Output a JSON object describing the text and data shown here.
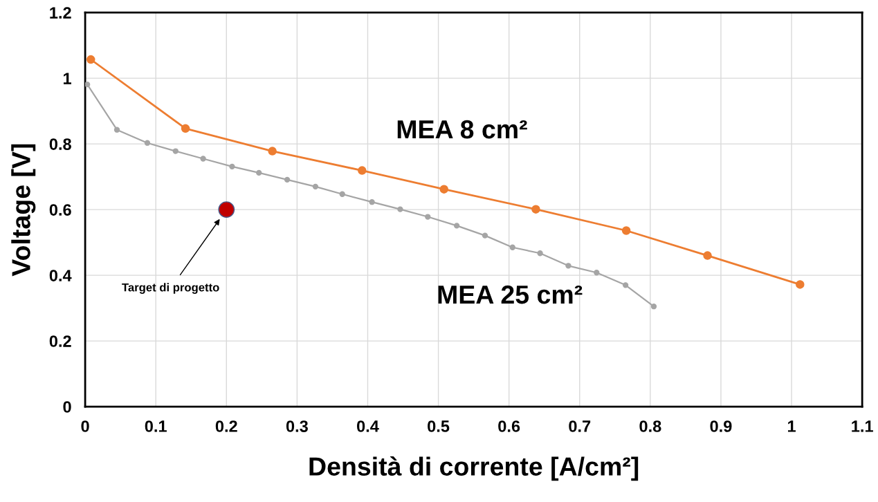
{
  "chart_data": {
    "type": "line",
    "xlabel": "Densità di corrente [A/cm²]",
    "ylabel": "Voltage [V]",
    "xlim": [
      0,
      1.1
    ],
    "xticks": [
      0,
      0.1,
      0.2,
      0.3,
      0.4,
      0.5,
      0.6,
      0.7,
      0.8,
      0.9,
      1,
      1.1
    ],
    "ylim": [
      0,
      1.2
    ],
    "yticks": [
      0,
      0.2,
      0.4,
      0.6,
      0.8,
      1,
      1.2
    ],
    "grid": true,
    "legend": false,
    "marker": "circle",
    "line_style": "solid",
    "series": [
      {
        "name": "MEA 8 cm²",
        "color": "#ed7d31",
        "x": [
          0.008,
          0.142,
          0.265,
          0.392,
          0.508,
          0.638,
          0.766,
          0.881,
          1.012
        ],
        "values": [
          1.057,
          0.847,
          0.778,
          0.719,
          0.662,
          0.601,
          0.536,
          0.46,
          0.372
        ]
      },
      {
        "name": "MEA 25 cm²",
        "color": "#a5a5a5",
        "x": [
          0.003,
          0.045,
          0.088,
          0.128,
          0.167,
          0.208,
          0.246,
          0.286,
          0.326,
          0.364,
          0.406,
          0.446,
          0.485,
          0.526,
          0.566,
          0.605,
          0.644,
          0.684,
          0.724,
          0.765,
          0.805
        ],
        "values": [
          0.981,
          0.843,
          0.803,
          0.778,
          0.755,
          0.731,
          0.712,
          0.691,
          0.67,
          0.647,
          0.623,
          0.601,
          0.578,
          0.551,
          0.521,
          0.485,
          0.467,
          0.429,
          0.408,
          0.37,
          0.305
        ]
      },
      {
        "type": "scatter",
        "color": "#c00000",
        "x": [
          0.2
        ],
        "values": [
          0.6
        ]
      }
    ],
    "annotations": [
      "Target di progetto"
    ]
  }
}
